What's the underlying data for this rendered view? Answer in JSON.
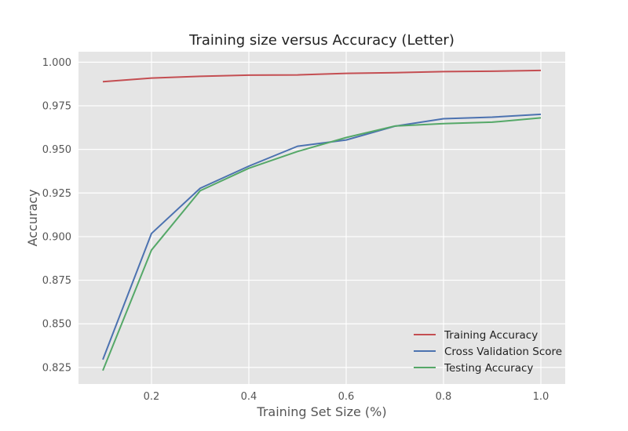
{
  "chart_data": {
    "type": "line",
    "title": "Training size versus Accuracy (Letter)",
    "xlabel": "Training Set Size (%)",
    "ylabel": "Accuracy",
    "xlim": [
      0.05,
      1.05
    ],
    "ylim": [
      0.8155,
      1.006
    ],
    "x_ticks": [
      0.2,
      0.4,
      0.6,
      0.8,
      1.0
    ],
    "x_tick_labels": [
      "0.2",
      "0.4",
      "0.6",
      "0.8",
      "1.0"
    ],
    "y_ticks": [
      0.825,
      0.85,
      0.875,
      0.9,
      0.925,
      0.95,
      0.975,
      1.0
    ],
    "y_tick_labels": [
      "0.825",
      "0.850",
      "0.875",
      "0.900",
      "0.925",
      "0.950",
      "0.975",
      "1.000"
    ],
    "grid": true,
    "legend_position": "lower-right",
    "x": [
      0.1,
      0.2,
      0.3,
      0.4,
      0.5,
      0.6,
      0.7,
      0.8,
      0.9,
      1.0
    ],
    "series": [
      {
        "name": "Training Accuracy",
        "color": "#C44E52",
        "values": [
          0.9888,
          0.9909,
          0.9919,
          0.9926,
          0.9927,
          0.9936,
          0.994,
          0.9946,
          0.9948,
          0.9953
        ]
      },
      {
        "name": "Cross Validation Score",
        "color": "#4C72B0",
        "values": [
          0.8295,
          0.9018,
          0.9277,
          0.9404,
          0.9518,
          0.9554,
          0.9633,
          0.9676,
          0.9685,
          0.9701
        ]
      },
      {
        "name": "Testing Accuracy",
        "color": "#55A868",
        "values": [
          0.8232,
          0.8923,
          0.9263,
          0.9392,
          0.9488,
          0.9568,
          0.9634,
          0.9648,
          0.9656,
          0.9681
        ]
      }
    ],
    "style": {
      "plot_background": "#E5E5E5",
      "grid_color": "#FFFFFF"
    }
  }
}
